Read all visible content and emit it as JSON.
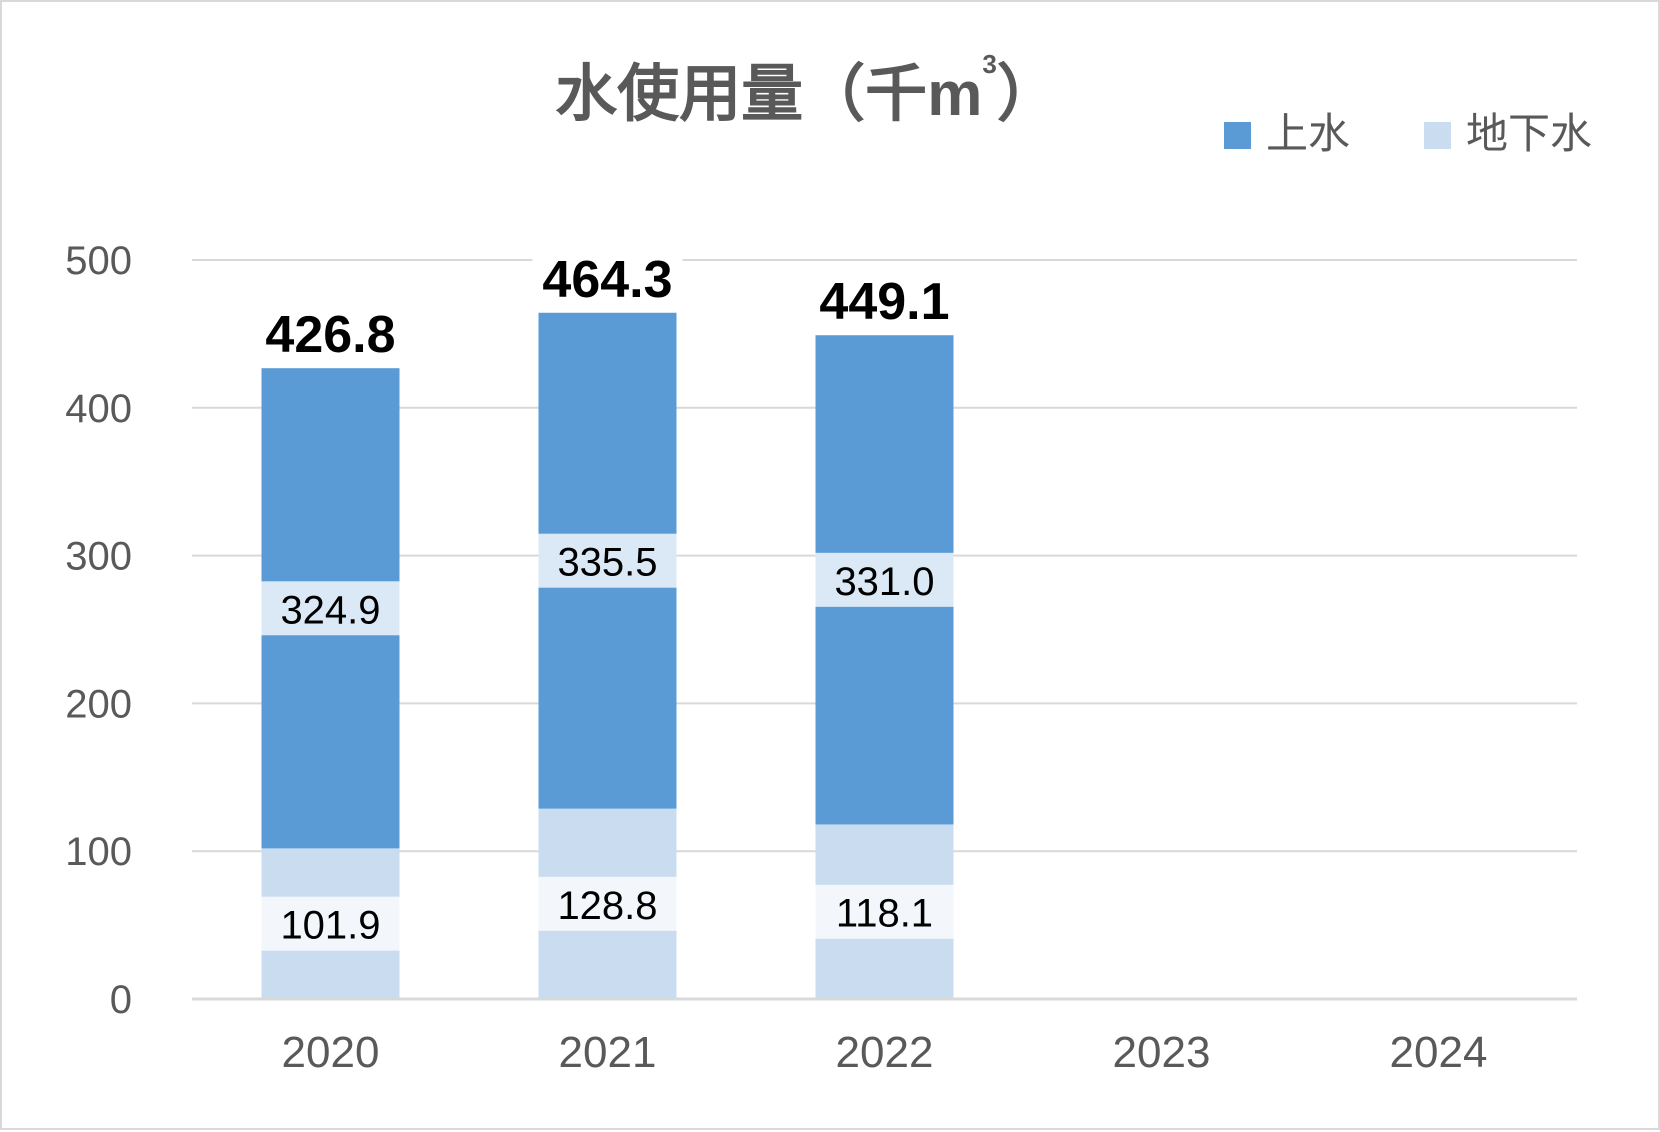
{
  "chart_data": {
    "type": "bar",
    "stacked": true,
    "title_main": "水使用量（千",
    "title_unit": "m",
    "title_unit_sup": "3",
    "title_close": "）",
    "categories": [
      "2020",
      "2021",
      "2022",
      "2023",
      "2024"
    ],
    "series": [
      {
        "name": "地下水",
        "color": "#c9dcf0",
        "values": [
          101.9,
          128.8,
          118.1,
          null,
          null
        ]
      },
      {
        "name": "上水",
        "color": "#5b9bd5",
        "values": [
          324.9,
          335.5,
          331.0,
          null,
          null
        ]
      }
    ],
    "series_labels": [
      [
        "101.9",
        "128.8",
        "118.1"
      ],
      [
        "324.9",
        "335.5",
        "331.0"
      ]
    ],
    "totals": [
      "426.8",
      "464.3",
      "449.1"
    ],
    "ylim": [
      0,
      500
    ],
    "yticks": [
      "0",
      "100",
      "200",
      "300",
      "400",
      "500"
    ],
    "grid": true,
    "legend_position": "top-right",
    "legend_order": [
      "上水",
      "地下水"
    ],
    "gridline_color": "#d9d9d9"
  }
}
